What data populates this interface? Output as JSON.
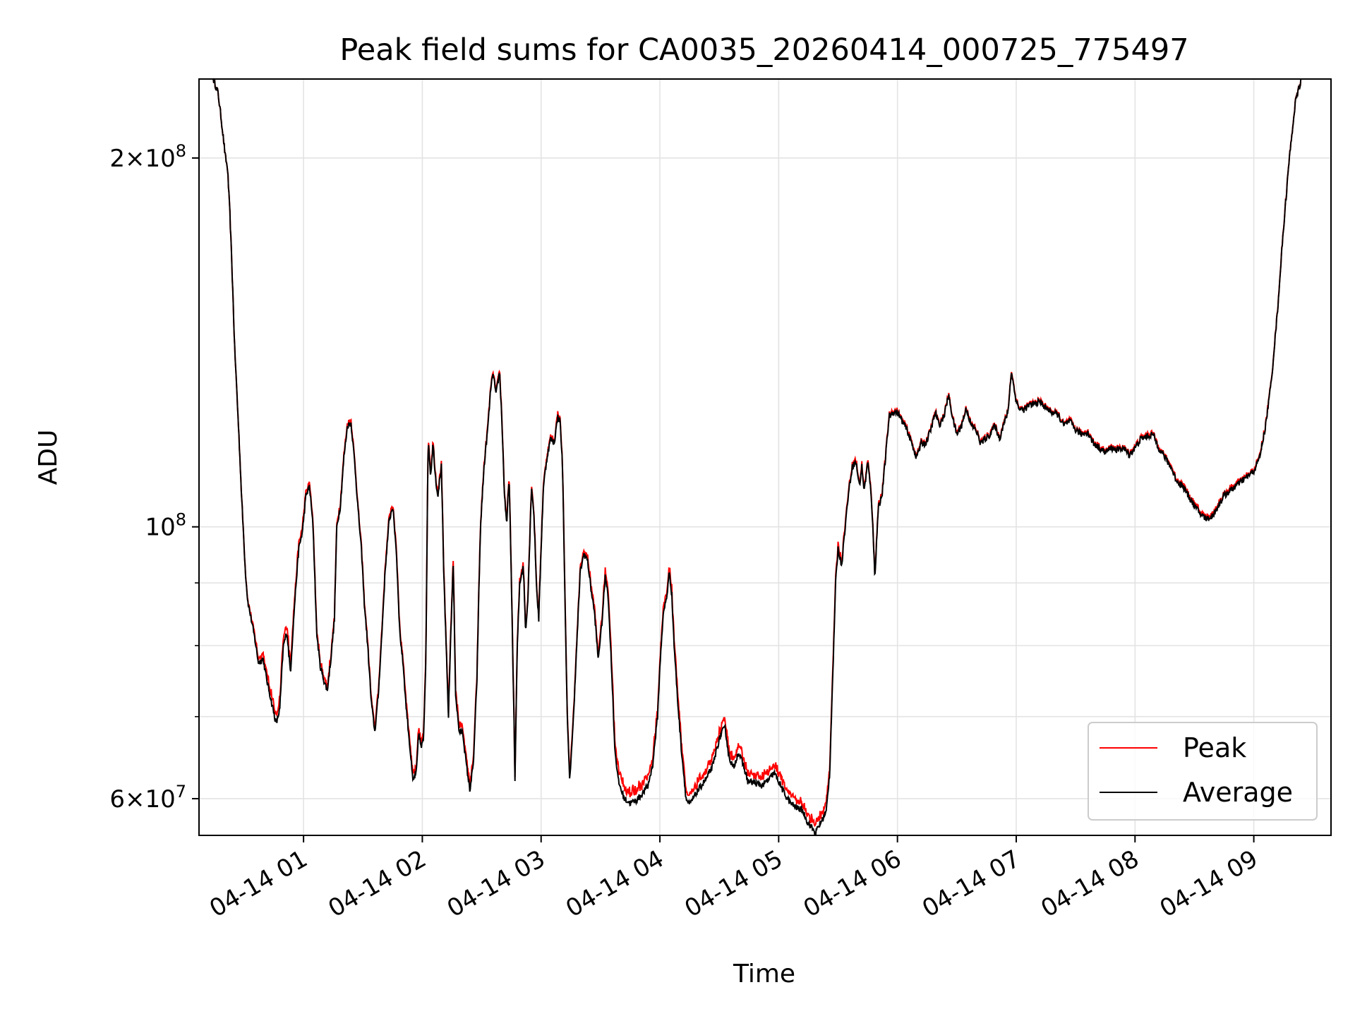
{
  "chart_data": {
    "type": "line",
    "title": "Peak field sums for CA0035_20260414_000725_775497",
    "xlabel": "Time",
    "ylabel": "ADU",
    "x_unit": "hours after 2026-04-14 00:00",
    "xlim": [
      0.12,
      9.65
    ],
    "ylim": [
      56000000,
      232000000
    ],
    "y_scale": "log",
    "grid": true,
    "legend_position": "lower-right",
    "x_ticks": [
      {
        "value": 1,
        "label": "04-14 01"
      },
      {
        "value": 2,
        "label": "04-14 02"
      },
      {
        "value": 3,
        "label": "04-14 03"
      },
      {
        "value": 4,
        "label": "04-14 04"
      },
      {
        "value": 5,
        "label": "04-14 05"
      },
      {
        "value": 6,
        "label": "04-14 06"
      },
      {
        "value": 7,
        "label": "04-14 07"
      },
      {
        "value": 8,
        "label": "04-14 08"
      },
      {
        "value": 9,
        "label": "04-14 09"
      }
    ],
    "y_major_ticks": [
      {
        "value": 60000000,
        "mantissa": "6",
        "exponent": "7"
      },
      {
        "value": 100000000,
        "mantissa": "",
        "exponent": "8"
      },
      {
        "value": 200000000,
        "mantissa": "2",
        "exponent": "8"
      }
    ],
    "y_minor_ticks": [
      70000000,
      80000000,
      90000000
    ],
    "colors": {
      "peak": "#ff0000",
      "average": "#000000",
      "grid": "#e3e3e3"
    },
    "series": [
      {
        "name": "Peak",
        "color": "#ff0000",
        "offset_m": [
          [
            0.12,
            0
          ],
          [
            0.45,
            0
          ],
          [
            0.55,
            0.3
          ],
          [
            0.65,
            0.8
          ],
          [
            0.75,
            1.0
          ],
          [
            0.85,
            1.2
          ],
          [
            0.95,
            1.0
          ],
          [
            1.1,
            0.6
          ],
          [
            1.3,
            0.6
          ],
          [
            1.5,
            0.5
          ],
          [
            1.7,
            0.6
          ],
          [
            1.9,
            0.7
          ],
          [
            2.1,
            0.6
          ],
          [
            2.3,
            0.8
          ],
          [
            2.5,
            0.5
          ],
          [
            2.7,
            0.6
          ],
          [
            2.9,
            0.5
          ],
          [
            3.1,
            0.6
          ],
          [
            3.3,
            0.5
          ],
          [
            3.5,
            0.8
          ],
          [
            3.65,
            1.3
          ],
          [
            3.85,
            1.2
          ],
          [
            4.0,
            0.8
          ],
          [
            4.2,
            1.1
          ],
          [
            4.4,
            0.9
          ],
          [
            4.6,
            1.0
          ],
          [
            4.8,
            0.9
          ],
          [
            5.0,
            1.0
          ],
          [
            5.2,
            0.8
          ],
          [
            5.4,
            0.9
          ],
          [
            5.6,
            0.5
          ],
          [
            5.8,
            0.4
          ],
          [
            6.2,
            0.3
          ],
          [
            7.0,
            0.3
          ],
          [
            8.0,
            0.3
          ],
          [
            8.8,
            0.4
          ],
          [
            9.3,
            0.2
          ],
          [
            9.65,
            0
          ]
        ]
      },
      {
        "name": "Average",
        "color": "#000000",
        "points": [
          [
            0.12,
            232
          ],
          [
            0.18,
            232
          ],
          [
            0.24,
            232
          ],
          [
            0.28,
            226
          ],
          [
            0.31,
            214
          ],
          [
            0.34,
            201
          ],
          [
            0.36,
            196
          ],
          [
            0.38,
            180
          ],
          [
            0.4,
            160
          ],
          [
            0.42,
            140
          ],
          [
            0.45,
            122
          ],
          [
            0.48,
            105
          ],
          [
            0.51,
            92
          ],
          [
            0.53,
            87
          ],
          [
            0.56,
            84
          ],
          [
            0.59,
            81
          ],
          [
            0.62,
            77.5
          ],
          [
            0.66,
            78
          ],
          [
            0.69,
            75
          ],
          [
            0.73,
            72
          ],
          [
            0.77,
            69
          ],
          [
            0.8,
            71
          ],
          [
            0.83,
            80
          ],
          [
            0.86,
            82
          ],
          [
            0.89,
            76
          ],
          [
            0.93,
            88
          ],
          [
            0.96,
            96
          ],
          [
            0.99,
            99
          ],
          [
            1.02,
            106
          ],
          [
            1.05,
            108
          ],
          [
            1.08,
            100
          ],
          [
            1.11,
            82
          ],
          [
            1.14,
            77
          ],
          [
            1.17,
            75
          ],
          [
            1.2,
            73.5
          ],
          [
            1.23,
            78
          ],
          [
            1.26,
            84
          ],
          [
            1.28,
            100
          ],
          [
            1.31,
            104
          ],
          [
            1.34,
            114
          ],
          [
            1.37,
            121
          ],
          [
            1.4,
            121.5
          ],
          [
            1.43,
            113
          ],
          [
            1.46,
            103
          ],
          [
            1.49,
            95
          ],
          [
            1.51,
            87
          ],
          [
            1.54,
            80
          ],
          [
            1.57,
            72
          ],
          [
            1.6,
            68
          ],
          [
            1.63,
            73
          ],
          [
            1.66,
            82
          ],
          [
            1.69,
            93
          ],
          [
            1.72,
            101
          ],
          [
            1.75,
            104
          ],
          [
            1.78,
            96
          ],
          [
            1.81,
            82
          ],
          [
            1.84,
            77
          ],
          [
            1.86,
            72
          ],
          [
            1.89,
            67
          ],
          [
            1.92,
            62
          ],
          [
            1.95,
            63
          ],
          [
            1.97,
            68
          ],
          [
            1.99,
            66
          ],
          [
            2.01,
            67
          ],
          [
            2.03,
            78
          ],
          [
            2.05,
            118
          ],
          [
            2.07,
            110
          ],
          [
            2.09,
            117
          ],
          [
            2.11,
            110
          ],
          [
            2.13,
            106
          ],
          [
            2.16,
            112
          ],
          [
            2.18,
            92
          ],
          [
            2.2,
            80
          ],
          [
            2.22,
            70
          ],
          [
            2.24,
            82
          ],
          [
            2.26,
            93
          ],
          [
            2.28,
            73
          ],
          [
            2.31,
            68
          ],
          [
            2.34,
            68
          ],
          [
            2.37,
            64
          ],
          [
            2.4,
            61
          ],
          [
            2.43,
            64
          ],
          [
            2.46,
            75
          ],
          [
            2.49,
            100
          ],
          [
            2.52,
            112
          ],
          [
            2.55,
            120
          ],
          [
            2.58,
            131
          ],
          [
            2.6,
            133
          ],
          [
            2.62,
            128
          ],
          [
            2.65,
            134
          ],
          [
            2.67,
            122
          ],
          [
            2.69,
            107
          ],
          [
            2.71,
            100
          ],
          [
            2.73,
            110
          ],
          [
            2.76,
            80
          ],
          [
            2.78,
            62
          ],
          [
            2.8,
            80
          ],
          [
            2.82,
            90
          ],
          [
            2.85,
            93
          ],
          [
            2.87,
            82
          ],
          [
            2.89,
            88
          ],
          [
            2.92,
            108
          ],
          [
            2.94,
            102
          ],
          [
            2.96,
            90
          ],
          [
            2.98,
            84
          ],
          [
            3.0,
            96
          ],
          [
            3.02,
            108
          ],
          [
            3.05,
            114
          ],
          [
            3.08,
            118
          ],
          [
            3.11,
            117
          ],
          [
            3.14,
            123
          ],
          [
            3.16,
            122
          ],
          [
            3.18,
            112
          ],
          [
            3.2,
            88
          ],
          [
            3.22,
            70
          ],
          [
            3.24,
            62
          ],
          [
            3.27,
            69
          ],
          [
            3.3,
            80
          ],
          [
            3.33,
            92
          ],
          [
            3.36,
            95
          ],
          [
            3.39,
            94
          ],
          [
            3.42,
            89
          ],
          [
            3.45,
            85
          ],
          [
            3.48,
            78
          ],
          [
            3.51,
            83
          ],
          [
            3.54,
            91
          ],
          [
            3.56,
            89
          ],
          [
            3.59,
            78
          ],
          [
            3.62,
            66
          ],
          [
            3.65,
            62
          ],
          [
            3.7,
            60
          ],
          [
            3.75,
            59.5
          ],
          [
            3.8,
            59.8
          ],
          [
            3.85,
            60.5
          ],
          [
            3.9,
            61.5
          ],
          [
            3.94,
            64
          ],
          [
            3.98,
            70
          ],
          [
            4.01,
            80
          ],
          [
            4.03,
            85
          ],
          [
            4.06,
            88
          ],
          [
            4.08,
            92
          ],
          [
            4.1,
            88
          ],
          [
            4.12,
            80
          ],
          [
            4.15,
            72
          ],
          [
            4.18,
            66
          ],
          [
            4.22,
            60
          ],
          [
            4.25,
            59.3
          ],
          [
            4.3,
            60.5
          ],
          [
            4.35,
            61.5
          ],
          [
            4.4,
            62.5
          ],
          [
            4.45,
            64
          ],
          [
            4.48,
            66
          ],
          [
            4.52,
            68
          ],
          [
            4.55,
            68.5
          ],
          [
            4.58,
            65
          ],
          [
            4.62,
            63.5
          ],
          [
            4.66,
            65.5
          ],
          [
            4.7,
            64
          ],
          [
            4.74,
            62
          ],
          [
            4.8,
            61.8
          ],
          [
            4.86,
            61.5
          ],
          [
            4.92,
            62.2
          ],
          [
            4.96,
            63
          ],
          [
            5.0,
            62
          ],
          [
            5.05,
            60.5
          ],
          [
            5.1,
            59.5
          ],
          [
            5.15,
            59
          ],
          [
            5.2,
            58.7
          ],
          [
            5.24,
            57.5
          ],
          [
            5.28,
            56.8
          ],
          [
            5.31,
            56.2
          ],
          [
            5.33,
            56.8
          ],
          [
            5.36,
            57.5
          ],
          [
            5.4,
            58.5
          ],
          [
            5.43,
            63
          ],
          [
            5.46,
            78
          ],
          [
            5.48,
            90
          ],
          [
            5.5,
            96
          ],
          [
            5.53,
            93
          ],
          [
            5.56,
            100
          ],
          [
            5.59,
            107
          ],
          [
            5.62,
            112
          ],
          [
            5.65,
            113
          ],
          [
            5.68,
            108
          ],
          [
            5.7,
            112
          ],
          [
            5.72,
            107
          ],
          [
            5.75,
            113
          ],
          [
            5.78,
            106
          ],
          [
            5.81,
            91
          ],
          [
            5.84,
            104
          ],
          [
            5.87,
            106
          ],
          [
            5.9,
            114
          ],
          [
            5.93,
            123
          ],
          [
            5.96,
            124
          ],
          [
            6.0,
            124
          ],
          [
            6.04,
            122
          ],
          [
            6.08,
            120
          ],
          [
            6.12,
            117
          ],
          [
            6.16,
            114
          ],
          [
            6.2,
            117
          ],
          [
            6.24,
            117
          ],
          [
            6.28,
            120
          ],
          [
            6.32,
            124
          ],
          [
            6.35,
            121
          ],
          [
            6.39,
            123
          ],
          [
            6.43,
            128
          ],
          [
            6.47,
            122
          ],
          [
            6.5,
            119
          ],
          [
            6.54,
            121
          ],
          [
            6.58,
            125
          ],
          [
            6.62,
            121
          ],
          [
            6.66,
            120
          ],
          [
            6.7,
            117
          ],
          [
            6.74,
            118
          ],
          [
            6.78,
            119
          ],
          [
            6.82,
            121
          ],
          [
            6.86,
            118
          ],
          [
            6.89,
            121
          ],
          [
            6.93,
            124
          ],
          [
            6.96,
            134
          ],
          [
            6.99,
            128
          ],
          [
            7.02,
            125
          ],
          [
            7.06,
            124.5
          ],
          [
            7.1,
            125.5
          ],
          [
            7.15,
            126
          ],
          [
            7.2,
            126.5
          ],
          [
            7.25,
            125
          ],
          [
            7.3,
            124
          ],
          [
            7.35,
            123.5
          ],
          [
            7.4,
            121
          ],
          [
            7.45,
            122
          ],
          [
            7.5,
            120
          ],
          [
            7.55,
            119
          ],
          [
            7.6,
            119.5
          ],
          [
            7.65,
            117
          ],
          [
            7.7,
            116
          ],
          [
            7.75,
            115
          ],
          [
            7.8,
            116
          ],
          [
            7.85,
            115.5
          ],
          [
            7.9,
            116
          ],
          [
            7.95,
            114.5
          ],
          [
            8.0,
            116
          ],
          [
            8.05,
            118
          ],
          [
            8.1,
            118.5
          ],
          [
            8.15,
            119
          ],
          [
            8.2,
            116
          ],
          [
            8.25,
            114
          ],
          [
            8.3,
            112
          ],
          [
            8.35,
            109
          ],
          [
            8.4,
            108
          ],
          [
            8.45,
            106
          ],
          [
            8.5,
            104
          ],
          [
            8.55,
            102.5
          ],
          [
            8.6,
            101.5
          ],
          [
            8.65,
            102
          ],
          [
            8.7,
            104
          ],
          [
            8.75,
            106
          ],
          [
            8.8,
            107
          ],
          [
            8.85,
            108
          ],
          [
            8.9,
            109
          ],
          [
            8.95,
            110
          ],
          [
            9.0,
            111
          ],
          [
            9.05,
            114
          ],
          [
            9.1,
            121
          ],
          [
            9.15,
            132
          ],
          [
            9.2,
            150
          ],
          [
            9.25,
            175
          ],
          [
            9.3,
            200
          ],
          [
            9.35,
            222
          ],
          [
            9.4,
            232
          ],
          [
            9.65,
            232
          ]
        ]
      }
    ]
  }
}
